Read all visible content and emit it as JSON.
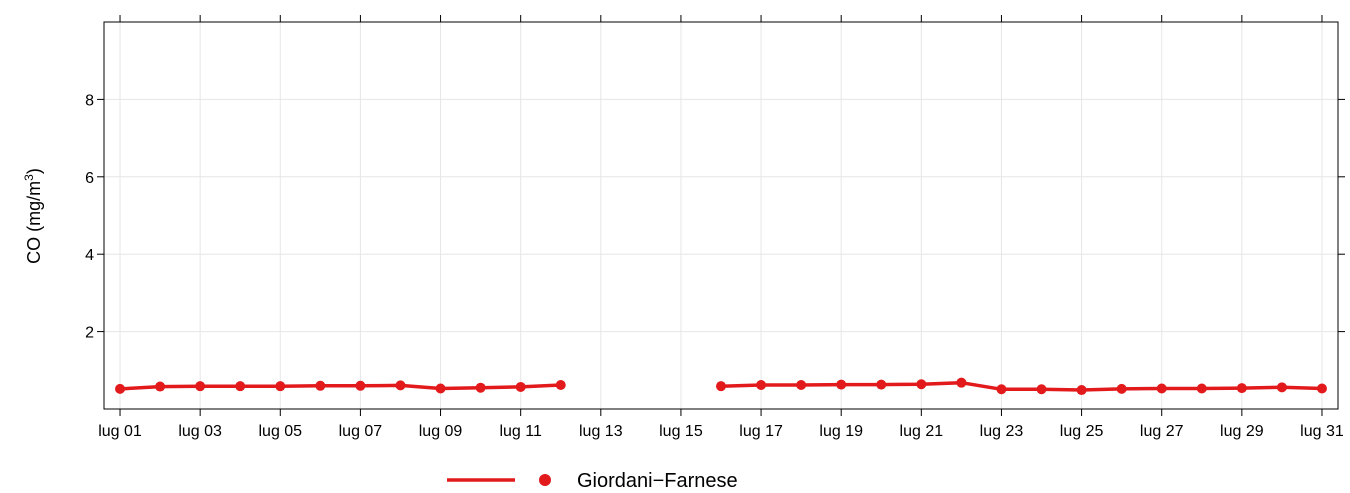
{
  "chart_data": {
    "type": "line",
    "title": "",
    "xlabel": "",
    "ylabel": "CO (mg/m",
    "ylabel_sup": "3",
    "ylabel_close": ")",
    "ylim": [
      0,
      10
    ],
    "yticks": [
      2,
      4,
      6,
      8
    ],
    "ytick_labels": [
      "2",
      "4",
      "6",
      "8"
    ],
    "xlim": [
      0.6,
      31.4
    ],
    "xticks": [
      1,
      3,
      5,
      7,
      9,
      11,
      13,
      15,
      17,
      19,
      21,
      23,
      25,
      27,
      29,
      31
    ],
    "xtick_labels": [
      "lug 01",
      "lug 03",
      "lug 05",
      "lug 07",
      "lug 09",
      "lug 11",
      "lug 13",
      "lug 15",
      "lug 17",
      "lug 19",
      "lug 21",
      "lug 23",
      "lug 25",
      "lug 27",
      "lug 29",
      "lug 31"
    ],
    "grid": true,
    "legend_position": "bottom",
    "series": [
      {
        "name": "Giordani−Farnese",
        "color": "#e31a1c",
        "x": [
          1,
          2,
          3,
          4,
          5,
          6,
          7,
          8,
          9,
          10,
          11,
          12,
          13,
          14,
          15,
          16,
          17,
          18,
          19,
          20,
          21,
          22,
          23,
          24,
          25,
          26,
          27,
          28,
          29,
          30,
          31
        ],
        "values": [
          0.52,
          0.58,
          0.59,
          0.59,
          0.59,
          0.6,
          0.6,
          0.61,
          0.53,
          0.55,
          0.57,
          0.62,
          null,
          null,
          null,
          0.59,
          0.62,
          0.62,
          0.63,
          0.63,
          0.64,
          0.68,
          0.51,
          0.51,
          0.49,
          0.52,
          0.53,
          0.53,
          0.54,
          0.56,
          0.53
        ]
      }
    ]
  }
}
